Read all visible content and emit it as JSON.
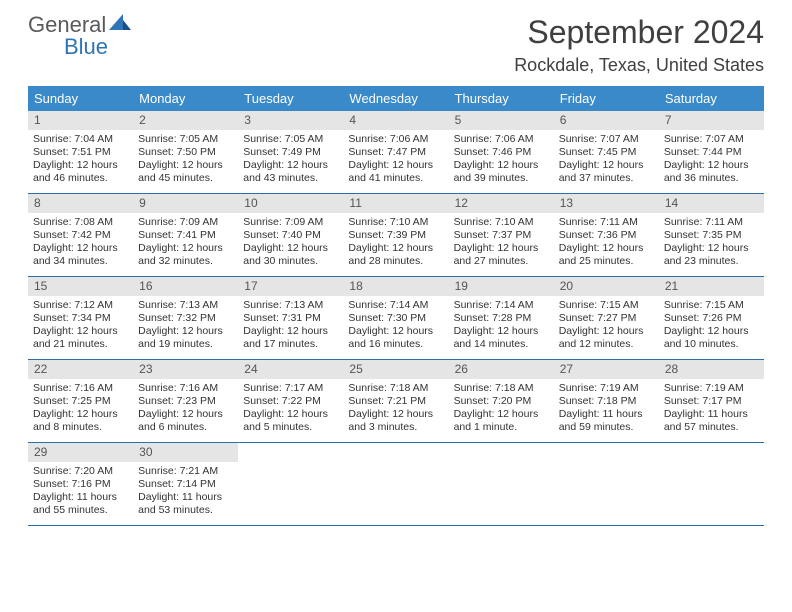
{
  "brand": {
    "part1": "General",
    "part2": "Blue",
    "color_gray": "#5a5a5a",
    "color_blue": "#2f75b5"
  },
  "header": {
    "month_title": "September 2024",
    "location": "Rockdale, Texas, United States",
    "title_color": "#404040"
  },
  "calendar": {
    "header_bg": "#3a8ac9",
    "header_fg": "#ffffff",
    "daynum_bg": "#e5e5e5",
    "row_border": "#2f6fa8",
    "day_names": [
      "Sunday",
      "Monday",
      "Tuesday",
      "Wednesday",
      "Thursday",
      "Friday",
      "Saturday"
    ],
    "weeks": [
      [
        {
          "n": "1",
          "sunrise": "Sunrise: 7:04 AM",
          "sunset": "Sunset: 7:51 PM",
          "daylight": "Daylight: 12 hours and 46 minutes."
        },
        {
          "n": "2",
          "sunrise": "Sunrise: 7:05 AM",
          "sunset": "Sunset: 7:50 PM",
          "daylight": "Daylight: 12 hours and 45 minutes."
        },
        {
          "n": "3",
          "sunrise": "Sunrise: 7:05 AM",
          "sunset": "Sunset: 7:49 PM",
          "daylight": "Daylight: 12 hours and 43 minutes."
        },
        {
          "n": "4",
          "sunrise": "Sunrise: 7:06 AM",
          "sunset": "Sunset: 7:47 PM",
          "daylight": "Daylight: 12 hours and 41 minutes."
        },
        {
          "n": "5",
          "sunrise": "Sunrise: 7:06 AM",
          "sunset": "Sunset: 7:46 PM",
          "daylight": "Daylight: 12 hours and 39 minutes."
        },
        {
          "n": "6",
          "sunrise": "Sunrise: 7:07 AM",
          "sunset": "Sunset: 7:45 PM",
          "daylight": "Daylight: 12 hours and 37 minutes."
        },
        {
          "n": "7",
          "sunrise": "Sunrise: 7:07 AM",
          "sunset": "Sunset: 7:44 PM",
          "daylight": "Daylight: 12 hours and 36 minutes."
        }
      ],
      [
        {
          "n": "8",
          "sunrise": "Sunrise: 7:08 AM",
          "sunset": "Sunset: 7:42 PM",
          "daylight": "Daylight: 12 hours and 34 minutes."
        },
        {
          "n": "9",
          "sunrise": "Sunrise: 7:09 AM",
          "sunset": "Sunset: 7:41 PM",
          "daylight": "Daylight: 12 hours and 32 minutes."
        },
        {
          "n": "10",
          "sunrise": "Sunrise: 7:09 AM",
          "sunset": "Sunset: 7:40 PM",
          "daylight": "Daylight: 12 hours and 30 minutes."
        },
        {
          "n": "11",
          "sunrise": "Sunrise: 7:10 AM",
          "sunset": "Sunset: 7:39 PM",
          "daylight": "Daylight: 12 hours and 28 minutes."
        },
        {
          "n": "12",
          "sunrise": "Sunrise: 7:10 AM",
          "sunset": "Sunset: 7:37 PM",
          "daylight": "Daylight: 12 hours and 27 minutes."
        },
        {
          "n": "13",
          "sunrise": "Sunrise: 7:11 AM",
          "sunset": "Sunset: 7:36 PM",
          "daylight": "Daylight: 12 hours and 25 minutes."
        },
        {
          "n": "14",
          "sunrise": "Sunrise: 7:11 AM",
          "sunset": "Sunset: 7:35 PM",
          "daylight": "Daylight: 12 hours and 23 minutes."
        }
      ],
      [
        {
          "n": "15",
          "sunrise": "Sunrise: 7:12 AM",
          "sunset": "Sunset: 7:34 PM",
          "daylight": "Daylight: 12 hours and 21 minutes."
        },
        {
          "n": "16",
          "sunrise": "Sunrise: 7:13 AM",
          "sunset": "Sunset: 7:32 PM",
          "daylight": "Daylight: 12 hours and 19 minutes."
        },
        {
          "n": "17",
          "sunrise": "Sunrise: 7:13 AM",
          "sunset": "Sunset: 7:31 PM",
          "daylight": "Daylight: 12 hours and 17 minutes."
        },
        {
          "n": "18",
          "sunrise": "Sunrise: 7:14 AM",
          "sunset": "Sunset: 7:30 PM",
          "daylight": "Daylight: 12 hours and 16 minutes."
        },
        {
          "n": "19",
          "sunrise": "Sunrise: 7:14 AM",
          "sunset": "Sunset: 7:28 PM",
          "daylight": "Daylight: 12 hours and 14 minutes."
        },
        {
          "n": "20",
          "sunrise": "Sunrise: 7:15 AM",
          "sunset": "Sunset: 7:27 PM",
          "daylight": "Daylight: 12 hours and 12 minutes."
        },
        {
          "n": "21",
          "sunrise": "Sunrise: 7:15 AM",
          "sunset": "Sunset: 7:26 PM",
          "daylight": "Daylight: 12 hours and 10 minutes."
        }
      ],
      [
        {
          "n": "22",
          "sunrise": "Sunrise: 7:16 AM",
          "sunset": "Sunset: 7:25 PM",
          "daylight": "Daylight: 12 hours and 8 minutes."
        },
        {
          "n": "23",
          "sunrise": "Sunrise: 7:16 AM",
          "sunset": "Sunset: 7:23 PM",
          "daylight": "Daylight: 12 hours and 6 minutes."
        },
        {
          "n": "24",
          "sunrise": "Sunrise: 7:17 AM",
          "sunset": "Sunset: 7:22 PM",
          "daylight": "Daylight: 12 hours and 5 minutes."
        },
        {
          "n": "25",
          "sunrise": "Sunrise: 7:18 AM",
          "sunset": "Sunset: 7:21 PM",
          "daylight": "Daylight: 12 hours and 3 minutes."
        },
        {
          "n": "26",
          "sunrise": "Sunrise: 7:18 AM",
          "sunset": "Sunset: 7:20 PM",
          "daylight": "Daylight: 12 hours and 1 minute."
        },
        {
          "n": "27",
          "sunrise": "Sunrise: 7:19 AM",
          "sunset": "Sunset: 7:18 PM",
          "daylight": "Daylight: 11 hours and 59 minutes."
        },
        {
          "n": "28",
          "sunrise": "Sunrise: 7:19 AM",
          "sunset": "Sunset: 7:17 PM",
          "daylight": "Daylight: 11 hours and 57 minutes."
        }
      ],
      [
        {
          "n": "29",
          "sunrise": "Sunrise: 7:20 AM",
          "sunset": "Sunset: 7:16 PM",
          "daylight": "Daylight: 11 hours and 55 minutes."
        },
        {
          "n": "30",
          "sunrise": "Sunrise: 7:21 AM",
          "sunset": "Sunset: 7:14 PM",
          "daylight": "Daylight: 11 hours and 53 minutes."
        },
        null,
        null,
        null,
        null,
        null
      ]
    ]
  }
}
